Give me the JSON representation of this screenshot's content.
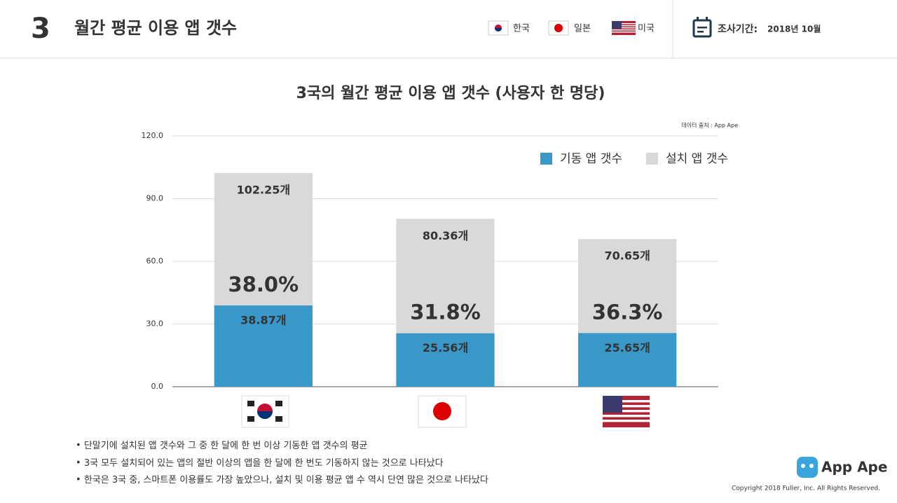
{
  "header": {
    "number": "3",
    "title": "월간 평균 이용 앱 갯수",
    "countries": [
      "한국",
      "일본",
      "미국"
    ],
    "period_label": "조사기간:",
    "period": "2018년 10월"
  },
  "chart_data": {
    "type": "bar",
    "title": "3국의 월간 평균 이용 앱 갯수 (사용자 한 명당)",
    "source": "데이터 출처 : App Ape",
    "categories": [
      null,
      null,
      null
    ],
    "series": [
      {
        "name": "설치 앱 갯수",
        "color": "#d9d9d9",
        "values": [
          102.25,
          80.36,
          70.65
        ],
        "value_labels": [
          "102.25개",
          "80.36개",
          "70.65개"
        ]
      },
      {
        "name": "기동 앱 갯수",
        "color": "#3a97c9",
        "values": [
          38.87,
          25.56,
          25.65
        ],
        "value_labels": [
          "38.87개",
          "25.56개",
          "25.65개"
        ]
      }
    ],
    "ratio_labels": [
      "38.0%",
      "31.8%",
      "36.3%"
    ],
    "ylim": [
      0,
      120
    ],
    "yticks": [
      {
        "value": 0,
        "label": "0.0"
      },
      {
        "value": 30,
        "label": "30.0"
      },
      {
        "value": 60,
        "label": "60.0"
      },
      {
        "value": 90,
        "label": "90.0"
      },
      {
        "value": 120,
        "label": "120.0"
      }
    ],
    "grid": true,
    "legend": "top-right"
  },
  "notes": [
    "단말기에 설치된 앱 갯수와 그 중 한 달에 한 번 이상 기동한 앱 갯수의 평균",
    "3국 모두 설치되어 있는 앱의 절반 이상의 앱을 한 달에 한 번도 기동하지 않는 것으로 나타났다",
    "한국은 3국 중, 스마트폰 이용률도 가장 높았으나, 설치 및 이용 평균 앱 수 역시 단연 많은 것으로 나타났다"
  ],
  "footer": {
    "logo": "App Ape",
    "copyright": "Copyright 2018 Fuller, Inc. All Rights Reserved."
  }
}
